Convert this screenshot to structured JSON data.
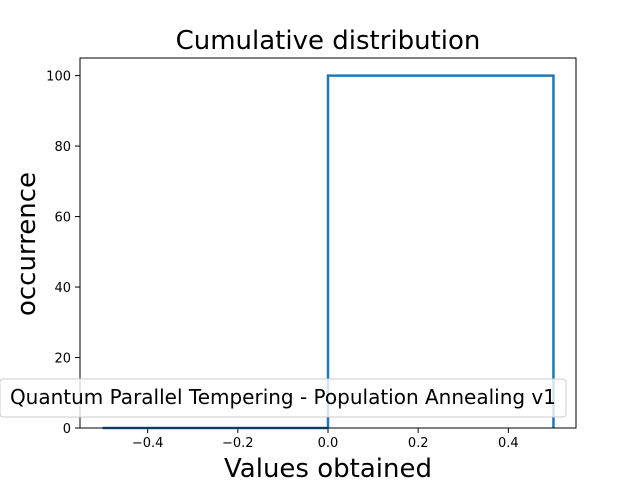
{
  "chart_data": {
    "type": "step",
    "title": "Cumulative distribution",
    "xlabel": "Values obtained",
    "ylabel": "occurrence",
    "xlim": [
      -0.55,
      0.55
    ],
    "ylim": [
      0,
      105
    ],
    "xticks": [
      -0.4,
      -0.2,
      0.0,
      0.2,
      0.4
    ],
    "xtick_labels": [
      "−0.4",
      "−0.2",
      "0.0",
      "0.2",
      "0.4"
    ],
    "yticks": [
      0,
      20,
      40,
      60,
      80,
      100
    ],
    "ytick_labels": [
      "0",
      "20",
      "40",
      "60",
      "80",
      "100"
    ],
    "grid": false,
    "legend_position": "lower-right",
    "series": [
      {
        "name": "Quantum Parallel Tempering - Population Annealing v1",
        "color": "#1f77b4",
        "bins": [
          [
            -0.5,
            0.0
          ],
          [
            0.0,
            0.5
          ]
        ],
        "values": [
          0,
          100
        ]
      }
    ]
  }
}
